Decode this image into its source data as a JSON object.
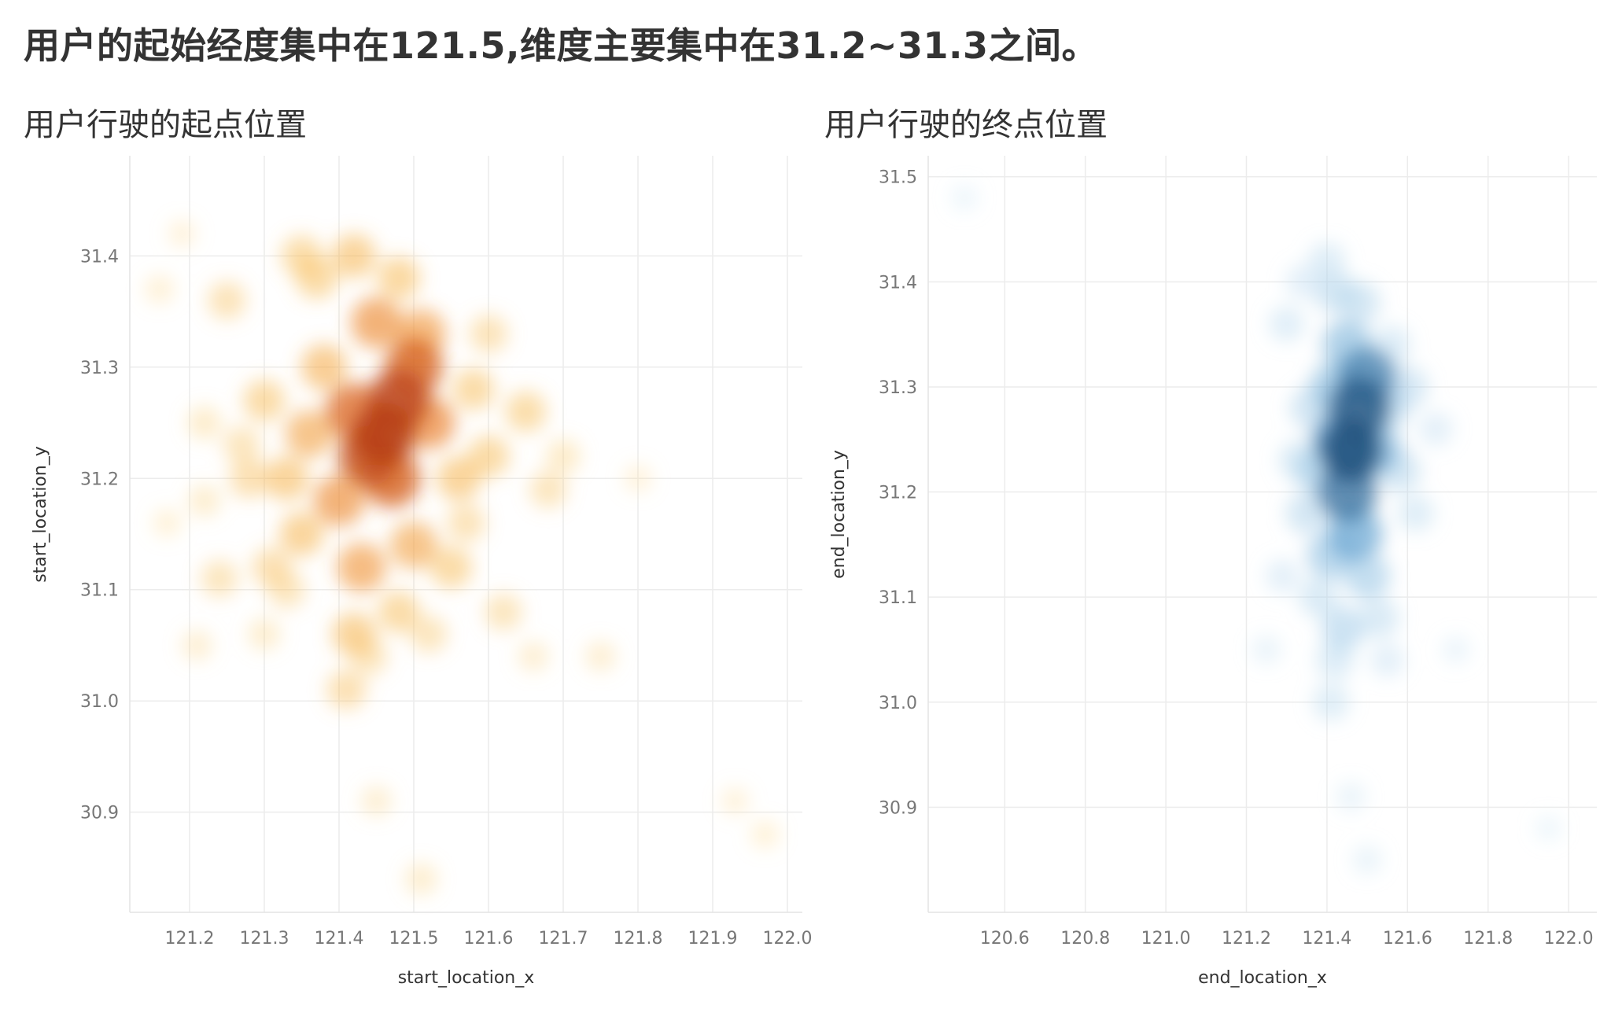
{
  "headline": "用户的起始经度集中在121.5,维度主要集中在31.2~31.3之间。",
  "chart_data": [
    {
      "type": "heatmap",
      "title": "用户行驶的起点位置",
      "xlabel": "start_location_x",
      "ylabel": "start_location_y",
      "xlim": [
        121.12,
        122.02
      ],
      "ylim": [
        30.81,
        31.49
      ],
      "x_ticks": [
        "121.2",
        "121.3",
        "121.4",
        "121.5",
        "121.6",
        "121.7",
        "121.8",
        "121.9",
        "122.0"
      ],
      "y_ticks": [
        "30.9",
        "31.0",
        "31.1",
        "31.2",
        "31.3",
        "31.4"
      ],
      "grid": true,
      "color_scale": [
        "#fde7b0",
        "#f7b54a",
        "#e8731f",
        "#b8401a"
      ],
      "points": [
        [
          121.46,
          31.24,
          1.0
        ],
        [
          121.48,
          31.27,
          0.95
        ],
        [
          121.44,
          31.22,
          0.9
        ],
        [
          121.5,
          31.3,
          0.8
        ],
        [
          121.42,
          31.26,
          0.75
        ],
        [
          121.47,
          31.2,
          0.8
        ],
        [
          121.52,
          31.25,
          0.6
        ],
        [
          121.4,
          31.18,
          0.55
        ],
        [
          121.36,
          31.24,
          0.45
        ],
        [
          121.45,
          31.34,
          0.55
        ],
        [
          121.51,
          31.33,
          0.5
        ],
        [
          121.38,
          31.3,
          0.4
        ],
        [
          121.43,
          31.12,
          0.5
        ],
        [
          121.5,
          31.14,
          0.45
        ],
        [
          121.33,
          31.2,
          0.35
        ],
        [
          121.56,
          31.2,
          0.35
        ],
        [
          121.58,
          31.28,
          0.3
        ],
        [
          121.35,
          31.15,
          0.35
        ],
        [
          121.3,
          31.27,
          0.3
        ],
        [
          121.42,
          31.06,
          0.35
        ],
        [
          121.48,
          31.08,
          0.3
        ],
        [
          121.55,
          31.12,
          0.3
        ],
        [
          121.6,
          31.22,
          0.3
        ],
        [
          121.65,
          31.26,
          0.28
        ],
        [
          121.28,
          31.2,
          0.25
        ],
        [
          121.31,
          31.12,
          0.25
        ],
        [
          121.37,
          31.38,
          0.3
        ],
        [
          121.42,
          31.4,
          0.35
        ],
        [
          121.48,
          31.38,
          0.32
        ],
        [
          121.35,
          31.4,
          0.28
        ],
        [
          121.25,
          31.36,
          0.22
        ],
        [
          121.24,
          31.11,
          0.2
        ],
        [
          121.6,
          31.33,
          0.22
        ],
        [
          121.68,
          31.19,
          0.2
        ],
        [
          121.62,
          31.08,
          0.2
        ],
        [
          121.52,
          31.06,
          0.2
        ],
        [
          121.41,
          31.01,
          0.25
        ],
        [
          121.44,
          31.04,
          0.2
        ],
        [
          121.27,
          31.23,
          0.2
        ],
        [
          121.22,
          31.18,
          0.12
        ],
        [
          121.22,
          31.25,
          0.14
        ],
        [
          121.21,
          31.05,
          0.1
        ],
        [
          121.3,
          31.06,
          0.12
        ],
        [
          121.7,
          31.22,
          0.15
        ],
        [
          121.66,
          31.04,
          0.1
        ],
        [
          121.75,
          31.04,
          0.1
        ],
        [
          121.45,
          30.91,
          0.1
        ],
        [
          121.51,
          30.84,
          0.12
        ],
        [
          121.93,
          30.91,
          0.06
        ],
        [
          121.97,
          30.88,
          0.07
        ],
        [
          121.8,
          31.2,
          0.06
        ],
        [
          121.16,
          31.37,
          0.08
        ],
        [
          121.19,
          31.42,
          0.06
        ],
        [
          121.17,
          31.16,
          0.07
        ],
        [
          121.33,
          31.1,
          0.2
        ],
        [
          121.57,
          31.16,
          0.22
        ]
      ]
    },
    {
      "type": "heatmap",
      "title": "用户行驶的终点位置",
      "xlabel": "end_location_x",
      "ylabel": "end_location_y",
      "xlim": [
        120.41,
        122.07
      ],
      "ylim": [
        30.8,
        31.52
      ],
      "x_ticks": [
        "120.6",
        "120.8",
        "121.0",
        "121.2",
        "121.4",
        "121.6",
        "121.8",
        "122.0"
      ],
      "y_ticks": [
        "30.9",
        "31.0",
        "31.1",
        "31.2",
        "31.3",
        "31.4",
        "31.5"
      ],
      "grid": true,
      "color_scale": [
        "#d6eaf6",
        "#a6cee9",
        "#5e9fcf",
        "#23537e"
      ],
      "points": [
        [
          121.46,
          31.24,
          1.0
        ],
        [
          121.48,
          31.28,
          0.95
        ],
        [
          121.45,
          31.2,
          0.85
        ],
        [
          121.5,
          31.31,
          0.8
        ],
        [
          121.43,
          31.25,
          0.7
        ],
        [
          121.47,
          31.16,
          0.65
        ],
        [
          121.52,
          31.24,
          0.55
        ],
        [
          121.42,
          31.3,
          0.5
        ],
        [
          121.45,
          31.34,
          0.5
        ],
        [
          121.41,
          31.14,
          0.45
        ],
        [
          121.5,
          31.12,
          0.4
        ],
        [
          121.38,
          31.22,
          0.4
        ],
        [
          121.55,
          31.28,
          0.35
        ],
        [
          121.36,
          31.28,
          0.3
        ],
        [
          121.44,
          31.07,
          0.35
        ],
        [
          121.48,
          31.38,
          0.3
        ],
        [
          121.42,
          31.39,
          0.3
        ],
        [
          121.35,
          31.18,
          0.3
        ],
        [
          121.58,
          31.22,
          0.3
        ],
        [
          121.6,
          31.3,
          0.28
        ],
        [
          121.33,
          31.23,
          0.25
        ],
        [
          121.38,
          31.1,
          0.25
        ],
        [
          121.53,
          31.08,
          0.25
        ],
        [
          121.42,
          31.04,
          0.22
        ],
        [
          121.41,
          31.0,
          0.2
        ],
        [
          121.3,
          31.36,
          0.18
        ],
        [
          121.29,
          31.12,
          0.15
        ],
        [
          121.62,
          31.18,
          0.2
        ],
        [
          121.67,
          31.26,
          0.15
        ],
        [
          121.55,
          31.04,
          0.15
        ],
        [
          121.46,
          30.91,
          0.08
        ],
        [
          121.5,
          30.85,
          0.08
        ],
        [
          120.5,
          31.48,
          0.05
        ],
        [
          121.95,
          30.88,
          0.04
        ],
        [
          121.72,
          31.05,
          0.06
        ],
        [
          121.25,
          31.05,
          0.08
        ],
        [
          121.4,
          31.42,
          0.2
        ],
        [
          121.34,
          31.4,
          0.15
        ],
        [
          121.56,
          31.34,
          0.22
        ]
      ]
    }
  ]
}
